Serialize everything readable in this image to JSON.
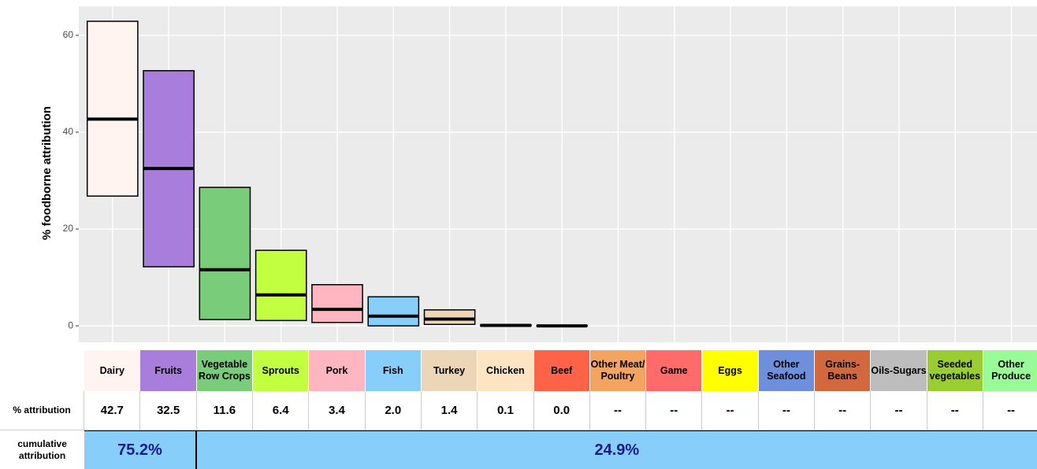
{
  "chart_data": {
    "type": "crossbar",
    "y_label": "% foodborne attribution",
    "ylim": [
      -3.4,
      66
    ],
    "yticks": [
      0,
      20,
      40,
      60
    ],
    "grid": true,
    "categories": [
      "Dairy",
      "Fruits",
      "Vegetable Row Crops",
      "Sprouts",
      "Pork",
      "Fish",
      "Turkey",
      "Chicken",
      "Beef",
      "Other Meat/ Poultry",
      "Game",
      "Eggs",
      "Other Seafood",
      "Grains-Beans",
      "Oils-Sugars",
      "Seeded vegetables",
      "Other Produce"
    ],
    "colors": [
      "#fff4ef",
      "#a87ddb",
      "#79cc7a",
      "#c1ff40",
      "#ffb6c1",
      "#87cefa",
      "#edd5b7",
      "#ffe4c4",
      "#ff6347",
      "#f4a460",
      "#ff6a6a",
      "#ffff00",
      "#6e8fdc",
      "#d2693e",
      "#bdbdbd",
      "#9acd32",
      "#98fb98"
    ],
    "low": [
      26.8,
      12.2,
      1.3,
      1.1,
      0.7,
      0.0,
      0.3,
      0.0,
      0.0,
      null,
      null,
      null,
      null,
      null,
      null,
      null,
      null
    ],
    "values": [
      42.7,
      32.5,
      11.6,
      6.4,
      3.4,
      2.0,
      1.4,
      0.1,
      0.0,
      null,
      null,
      null,
      null,
      null,
      null,
      null,
      null
    ],
    "value_labels": [
      "42.7",
      "32.5",
      "11.6",
      "6.4",
      "3.4",
      "2.0",
      "1.4",
      "0.1",
      "0.0",
      "--",
      "--",
      "--",
      "--",
      "--",
      "--",
      "--",
      "--"
    ],
    "high": [
      62.9,
      52.7,
      28.6,
      15.6,
      8.5,
      6.0,
      3.3,
      0.2,
      0.0,
      null,
      null,
      null,
      null,
      null,
      null,
      null,
      null
    ],
    "row_labels": [
      "% attribution",
      "cumulative attribution"
    ],
    "cumulative_labels": [
      "75.2%",
      "24.9%"
    ]
  }
}
